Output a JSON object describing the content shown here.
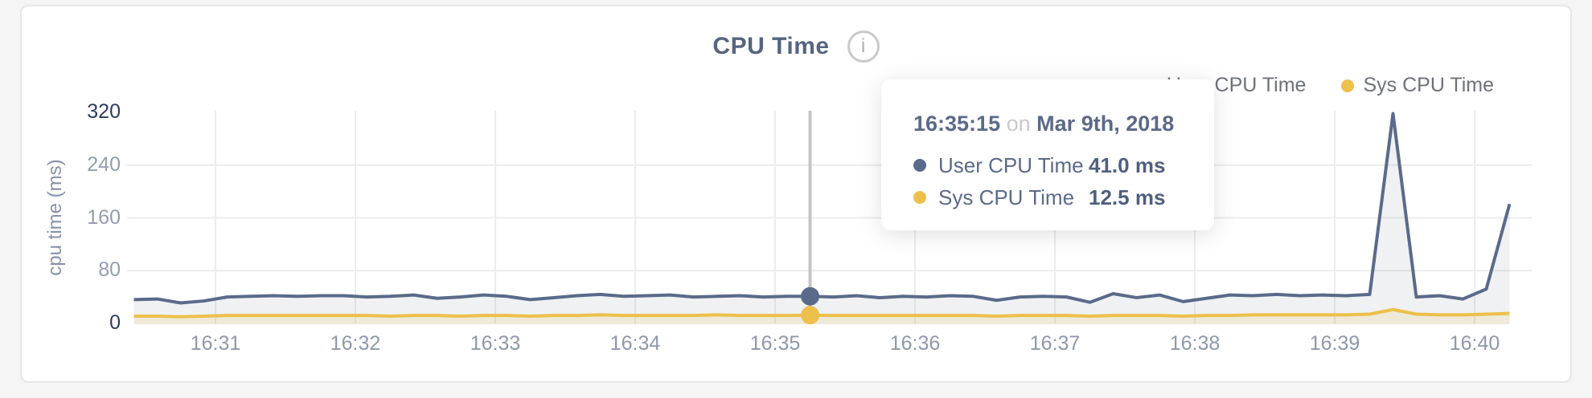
{
  "header": {
    "title": "CPU Time",
    "info_icon": "i"
  },
  "legend": [
    {
      "label": "User CPU Time",
      "color": "#5a6a8a"
    },
    {
      "label": "Sys CPU Time",
      "color": "#edc04b"
    }
  ],
  "tooltip": {
    "time": "16:35:15",
    "conjunction": "on",
    "date": "Mar 9th, 2018",
    "rows": [
      {
        "label": "User CPU Time",
        "value": "41.0 ms",
        "color": "#5a6a8a"
      },
      {
        "label": "Sys CPU Time",
        "value": "12.5 ms",
        "color": "#edc04b"
      }
    ]
  },
  "chart_data": {
    "type": "area",
    "title": "CPU Time",
    "ylabel": "cpu time (ms)",
    "ylim": [
      0,
      320
    ],
    "yticks": [
      0,
      80,
      160,
      240,
      320
    ],
    "xticks": [
      "16:31",
      "16:32",
      "16:33",
      "16:34",
      "16:35",
      "16:36",
      "16:37",
      "16:38",
      "16:39",
      "16:40"
    ],
    "x_start_time": "16:30:25",
    "x_step_seconds": 10,
    "grid": "on",
    "legend_position": "top-right",
    "series": [
      {
        "name": "User CPU Time",
        "color": "#5a6a8a",
        "fill": "rgba(101,115,140,0.10)",
        "values": [
          36,
          37,
          31,
          34,
          40,
          41,
          42,
          41,
          42,
          42,
          40,
          41,
          43,
          38,
          40,
          43,
          41,
          36,
          39,
          42,
          44,
          41,
          42,
          43,
          40,
          41,
          42,
          40,
          41,
          41,
          40,
          42,
          39,
          41,
          40,
          42,
          41,
          35,
          40,
          41,
          40,
          32,
          45,
          39,
          43,
          33,
          38,
          43,
          42,
          44,
          42,
          43,
          42,
          44,
          318,
          40,
          42,
          37,
          52,
          181
        ]
      },
      {
        "name": "Sys CPU Time",
        "color": "#edc04b",
        "fill": "rgba(239,192,73,0.16)",
        "values": [
          11,
          11,
          10,
          11,
          12,
          12,
          12,
          12,
          12,
          12,
          12,
          11,
          12,
          12,
          11,
          12,
          12,
          11,
          12,
          12,
          13,
          12,
          12,
          12,
          12,
          13,
          12,
          12,
          12,
          12.5,
          12,
          12,
          12,
          12,
          12,
          12,
          12,
          11,
          12,
          12,
          12,
          11,
          12,
          12,
          12,
          11,
          12,
          12,
          13,
          13,
          13,
          13,
          13,
          14,
          21,
          14,
          13,
          13,
          14,
          15
        ]
      }
    ],
    "hover": {
      "index": 29,
      "time": "16:35:15",
      "values": [
        41.0,
        12.5
      ]
    }
  }
}
